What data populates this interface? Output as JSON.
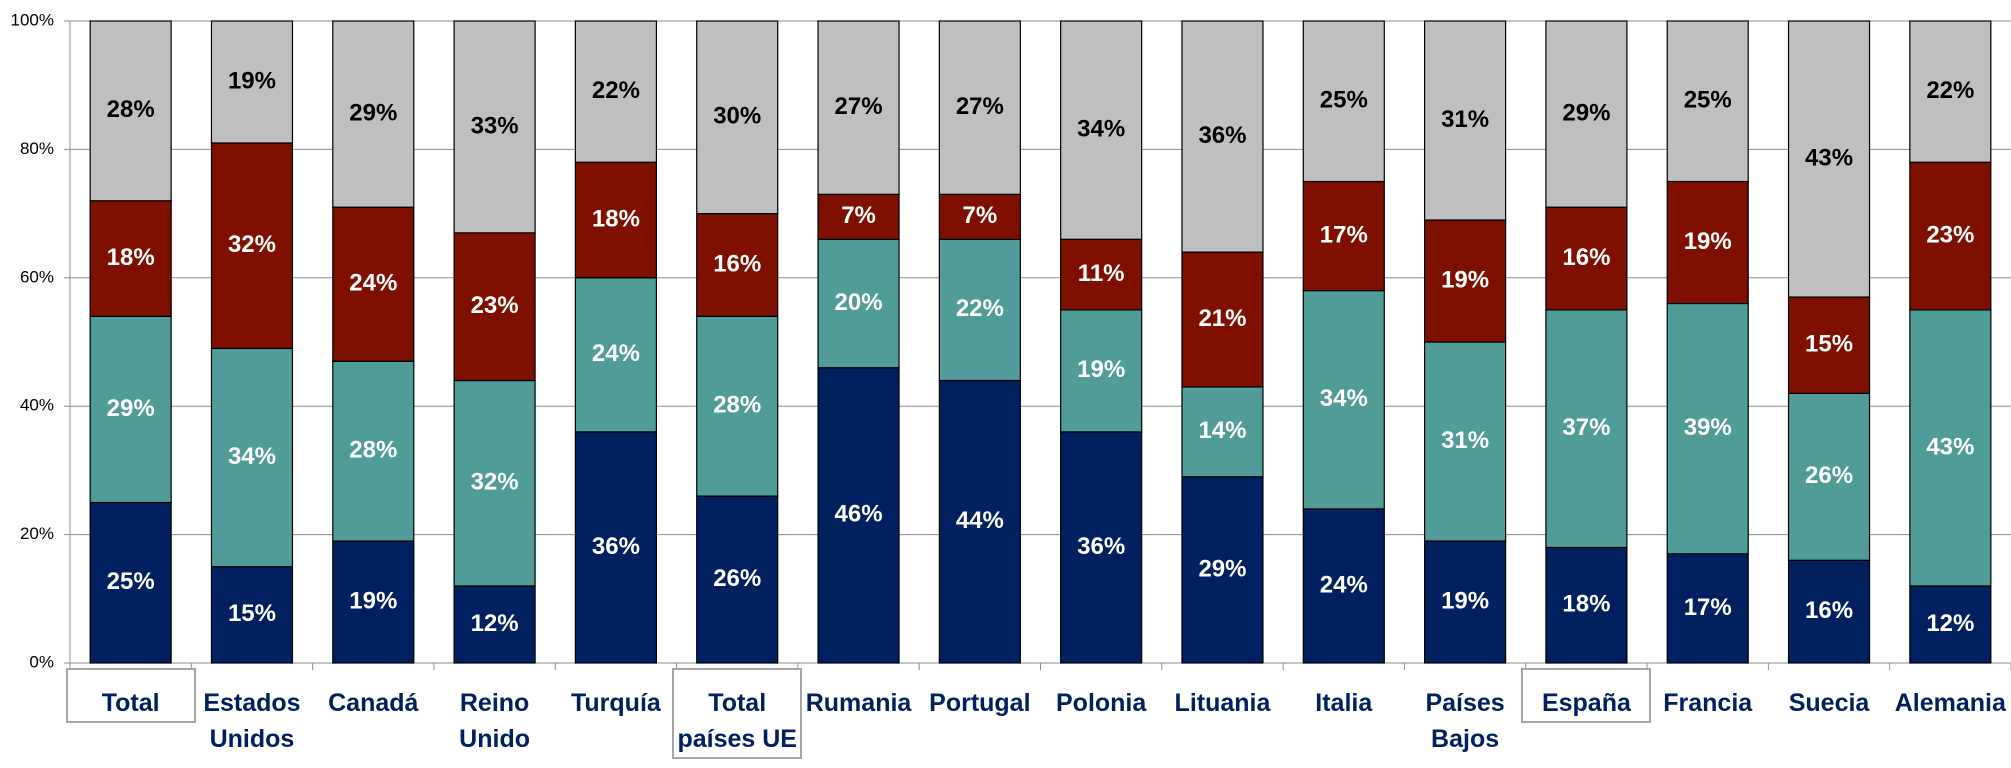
{
  "chart_data": {
    "type": "stacked_bar",
    "categories": [
      "Total",
      "Estados Unidos",
      "Canadá",
      "Reino Unido",
      "Turquía",
      "Total países UE",
      "Rumania",
      "Portugal",
      "Polonia",
      "Lituania",
      "Italia",
      "Países Bajos",
      "España",
      "Francia",
      "Suecia",
      "Alemania"
    ],
    "series": [
      {
        "color": "#002060",
        "label_color": "#ffffff",
        "values": [
          25,
          15,
          19,
          12,
          36,
          26,
          46,
          44,
          36,
          29,
          24,
          19,
          18,
          17,
          16,
          12
        ],
        "value_labels": [
          "25%",
          "15%",
          "19%",
          "12%",
          "36%",
          "26%",
          "46%",
          "44%",
          "36%",
          "29%",
          "24%",
          "19%",
          "18%",
          "17%",
          "16%",
          "12%"
        ]
      },
      {
        "color": "#4f9c98",
        "label_color": "#ffffff",
        "values": [
          29,
          34,
          28,
          32,
          24,
          28,
          20,
          22,
          19,
          14,
          34,
          31,
          37,
          39,
          26,
          43
        ],
        "value_labels": [
          "29%",
          "34%",
          "28%",
          "32%",
          "24%",
          "28%",
          "20%",
          "22%",
          "19%",
          "14%",
          "34%",
          "31%",
          "37%",
          "39%",
          "26%",
          "43%"
        ]
      },
      {
        "color": "#7f1000",
        "label_color": "#ffffff",
        "values": [
          18,
          32,
          24,
          23,
          18,
          16,
          7,
          7,
          11,
          21,
          17,
          19,
          16,
          19,
          15,
          23
        ],
        "value_labels": [
          "18%",
          "32%",
          "24%",
          "23%",
          "18%",
          "16%",
          "7%",
          "7%",
          "11%",
          "21%",
          "17%",
          "19%",
          "16%",
          "19%",
          "15%",
          "23%"
        ]
      },
      {
        "color": "#bfbfbf",
        "label_color": "#000000",
        "values": [
          28,
          19,
          29,
          33,
          22,
          30,
          27,
          27,
          34,
          36,
          25,
          31,
          29,
          25,
          43,
          22
        ],
        "value_labels": [
          "28%",
          "19%",
          "29%",
          "33%",
          "22%",
          "30%",
          "27%",
          "27%",
          "34%",
          "36%",
          "25%",
          "31%",
          "29%",
          "25%",
          "43%",
          "22%"
        ]
      }
    ],
    "ylim": [
      0,
      100
    ],
    "yticks": [
      {
        "value": 0,
        "label": "0%"
      },
      {
        "value": 20,
        "label": "20%"
      },
      {
        "value": 40,
        "label": "40%"
      },
      {
        "value": 60,
        "label": "60%"
      },
      {
        "value": 80,
        "label": "80%"
      },
      {
        "value": 100,
        "label": "100%"
      }
    ],
    "grid": true,
    "highlighted_categories": [
      0,
      5,
      12
    ]
  }
}
